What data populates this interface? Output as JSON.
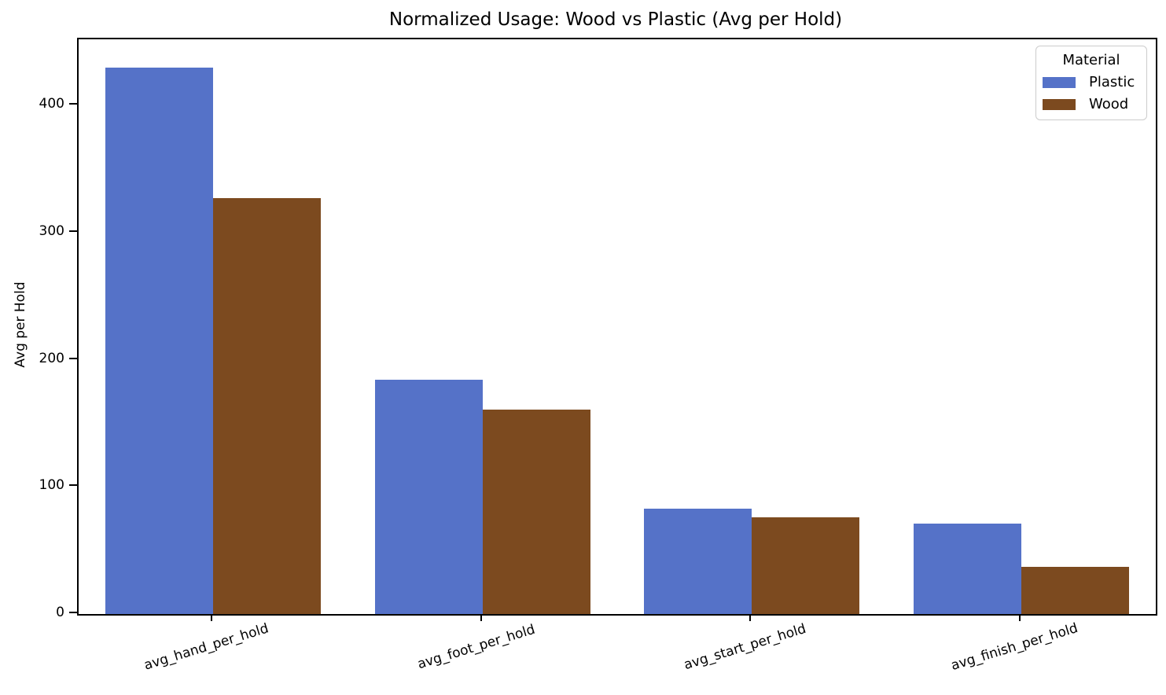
{
  "chart_data": {
    "type": "bar",
    "title": "Normalized Usage: Wood vs Plastic (Avg per Hold)",
    "xlabel": "",
    "ylabel": "Avg per Hold",
    "categories": [
      "avg_hand_per_hold",
      "avg_foot_per_hold",
      "avg_start_per_hold",
      "avg_finish_per_hold"
    ],
    "series": [
      {
        "name": "Plastic",
        "color": "#5572c8",
        "values": [
          430,
          184,
          83,
          71
        ]
      },
      {
        "name": "Wood",
        "color": "#7c4a1f",
        "values": [
          327,
          161,
          76,
          37
        ]
      }
    ],
    "ylim": [
      0,
      452
    ],
    "yticks": [
      0,
      100,
      200,
      300,
      400
    ],
    "grid": false,
    "x_tick_rotation_deg": -17,
    "legend": {
      "title": "Material",
      "position": "upper right"
    }
  }
}
